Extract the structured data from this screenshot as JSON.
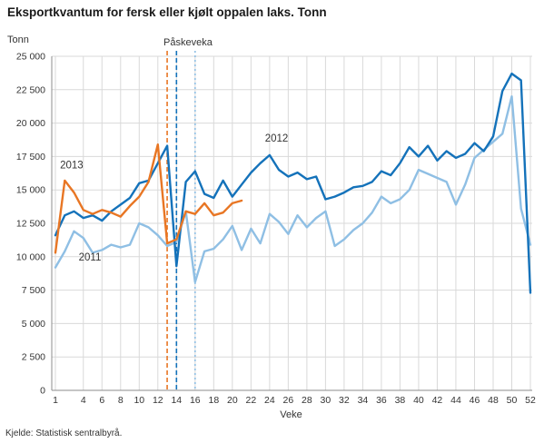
{
  "page": {
    "source": "Kjelde: Statistisk sentralbyrå."
  },
  "chart_data": {
    "type": "line",
    "title": "Eksportkvantum for fersk eller kjølt oppalen laks. Tonn",
    "unit_label": "Tonn",
    "xlabel": "Veke",
    "ylim": [
      0,
      25000
    ],
    "x_range": [
      1,
      52
    ],
    "grid": true,
    "yticks": [
      0,
      2500,
      5000,
      7500,
      10000,
      12500,
      15000,
      17500,
      20000,
      22500,
      25000
    ],
    "ytick_labels": [
      "0",
      "2 500",
      "5 000",
      "7 500",
      "10 000",
      "12 500",
      "15 000",
      "17 500",
      "20 000",
      "22 500",
      "25 000"
    ],
    "xticks": [
      1,
      4,
      6,
      8,
      10,
      12,
      14,
      16,
      18,
      20,
      22,
      24,
      26,
      28,
      30,
      32,
      34,
      36,
      38,
      40,
      42,
      44,
      46,
      48,
      50,
      52
    ],
    "annotation": {
      "label": "Påskeveka",
      "lines": [
        {
          "x": 13,
          "color": "#e87624",
          "style": "dashed",
          "series": "2013"
        },
        {
          "x": 14,
          "color": "#1472ba",
          "style": "dashed",
          "series": "2012"
        },
        {
          "x": 16,
          "color": "#8fbfe4",
          "style": "dotted",
          "series": "2011"
        }
      ]
    },
    "series": [
      {
        "name": "2011",
        "color": "#8fbfe4",
        "start_week": 1,
        "label_pos": {
          "x": 3.5,
          "y": 9700
        },
        "values": [
          9200,
          10400,
          11900,
          11400,
          10300,
          10500,
          10900,
          10700,
          10900,
          12500,
          12200,
          11600,
          10800,
          11100,
          13400,
          8100,
          10400,
          10600,
          11300,
          12300,
          10500,
          12100,
          11000,
          13200,
          12600,
          11700,
          13100,
          12200,
          12900,
          13400,
          10800,
          11300,
          12000,
          12500,
          13300,
          14500,
          14000,
          14300,
          15000,
          16500,
          16200,
          15900,
          15600,
          13900,
          15400,
          17400,
          18000,
          18600,
          19200,
          22000,
          13600,
          10900
        ]
      },
      {
        "name": "2012",
        "color": "#1472ba",
        "start_week": 1,
        "label_pos": {
          "x": 23.5,
          "y": 18600
        },
        "values": [
          11600,
          13100,
          13400,
          12900,
          13100,
          12700,
          13400,
          13900,
          14400,
          15500,
          15700,
          17000,
          18300,
          9300,
          15600,
          16400,
          14700,
          14400,
          15700,
          14500,
          15400,
          16300,
          17000,
          17600,
          16500,
          16000,
          16300,
          15800,
          16000,
          14300,
          14500,
          14800,
          15200,
          15300,
          15600,
          16400,
          16100,
          17000,
          18200,
          17500,
          18300,
          17200,
          17900,
          17400,
          17700,
          18500,
          17900,
          19000,
          22400,
          23700,
          23200,
          7300
        ]
      },
      {
        "name": "2013",
        "color": "#e87624",
        "start_week": 1,
        "label_pos": {
          "x": 1.5,
          "y": 16600
        },
        "values": [
          10300,
          15700,
          14800,
          13500,
          13200,
          13500,
          13300,
          13000,
          13800,
          14500,
          15600,
          18400,
          11000,
          11300,
          13400,
          13200,
          14000,
          13100,
          13300,
          14000,
          14200
        ]
      }
    ]
  }
}
